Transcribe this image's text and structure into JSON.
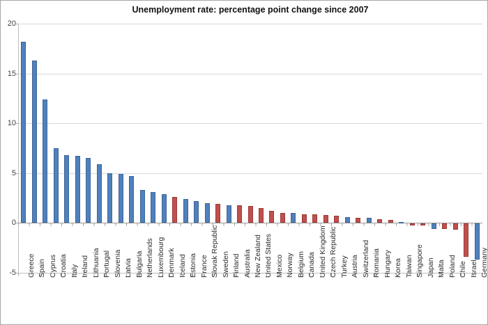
{
  "chart_data": {
    "type": "bar",
    "title": "Unemployment rate: percentage point change since 2007",
    "xlabel": "",
    "ylabel": "",
    "ylim": [
      -5,
      20
    ],
    "yticks": [
      20,
      15,
      10,
      5,
      0,
      -5
    ],
    "grid": true,
    "legend": false,
    "categories": [
      "Greece",
      "Spain",
      "Cyprus",
      "Croatia",
      "Italy",
      "Ireland",
      "Lithuania",
      "Portugal",
      "Slovenia",
      "Latvia",
      "Bulgaria",
      "Netherlands",
      "Luxembourg",
      "Denmark",
      "Iceland",
      "Estonia",
      "France",
      "Slovak Republic",
      "Sweden",
      "Finland",
      "Australia",
      "New Zealand",
      "United States",
      "Mexico",
      "Norway",
      "Belgium",
      "Canada",
      "United Kingdom",
      "Czech Republic",
      "Turkey",
      "Austria",
      "Switzerland",
      "Romania",
      "Hungary",
      "Korea",
      "Taiwan",
      "Singapore",
      "Japan",
      "Malta",
      "Poland",
      "Chile",
      "Israel",
      "Germany"
    ],
    "values": [
      18.2,
      16.3,
      12.4,
      7.5,
      6.8,
      6.7,
      6.5,
      5.9,
      5.0,
      4.9,
      4.7,
      3.3,
      3.1,
      2.9,
      2.6,
      2.4,
      2.2,
      2.0,
      1.9,
      1.8,
      1.8,
      1.7,
      1.5,
      1.2,
      1.0,
      1.0,
      0.9,
      0.9,
      0.8,
      0.7,
      0.6,
      0.5,
      0.5,
      0.4,
      0.3,
      0.1,
      -0.2,
      -0.2,
      -0.5,
      -0.5,
      -0.6,
      -3.3,
      -3.6
    ],
    "bar_color_keys": [
      "blue",
      "blue",
      "blue",
      "blue",
      "blue",
      "blue",
      "blue",
      "blue",
      "blue",
      "blue",
      "blue",
      "blue",
      "blue",
      "blue",
      "red",
      "blue",
      "blue",
      "blue",
      "red",
      "blue",
      "red",
      "red",
      "red",
      "red",
      "red",
      "blue",
      "red",
      "red",
      "red",
      "red",
      "blue",
      "red",
      "blue",
      "red",
      "red",
      "blue",
      "red",
      "red",
      "blue",
      "red",
      "red",
      "red",
      "blue"
    ],
    "palette": {
      "blue": "#4F81BD",
      "red": "#C0504D",
      "gridline": "#D9D9D9",
      "axis": "#A6A6A6"
    }
  }
}
